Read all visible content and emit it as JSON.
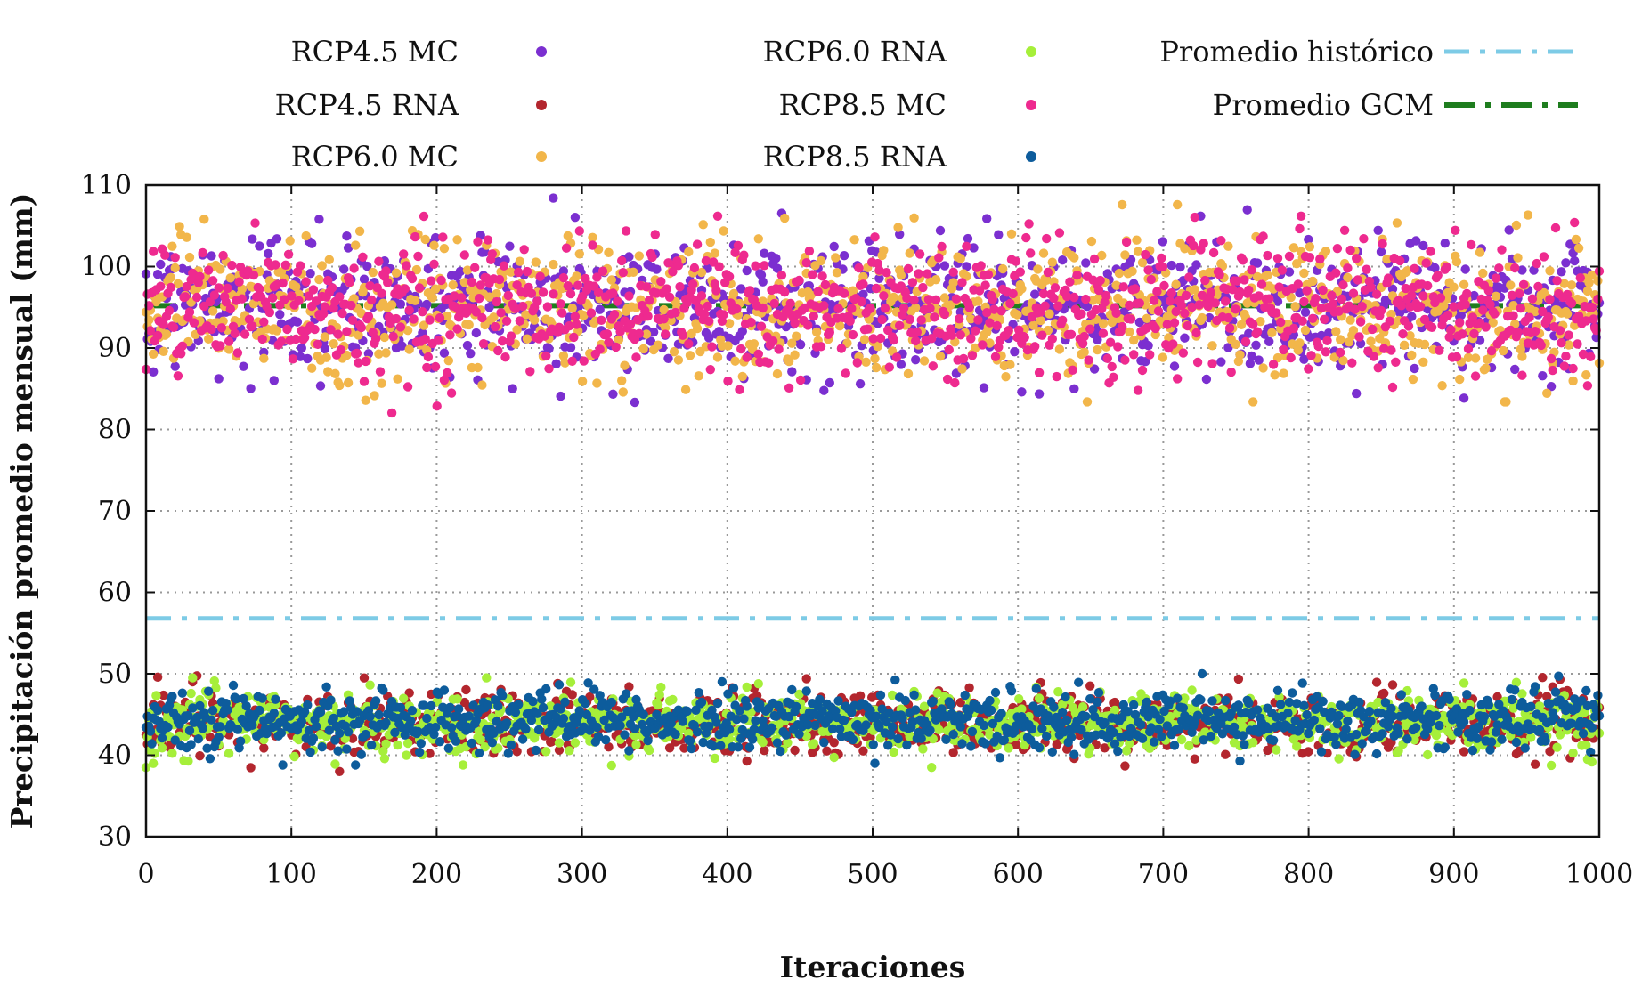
{
  "chart_data": {
    "type": "scatter",
    "title": "",
    "xlabel": "Iteraciones",
    "ylabel": "Precipitación promedio mensual (mm)",
    "xlim": [
      0,
      1000
    ],
    "ylim": [
      30,
      110
    ],
    "xticks": [
      "0",
      "100",
      "200",
      "300",
      "400",
      "500",
      "600",
      "700",
      "800",
      "900",
      "1000"
    ],
    "yticks": [
      "30",
      "40",
      "50",
      "60",
      "70",
      "80",
      "90",
      "100",
      "110"
    ],
    "grid": true,
    "legend_position": "top",
    "n_points_per_series": 1000,
    "series": [
      {
        "name": "RCP4.5 MC",
        "kind": "points",
        "color": "#7b2fd0",
        "group": "MC",
        "mean": 95.2,
        "spread": 4.2,
        "min": 79.6,
        "max": 108.4
      },
      {
        "name": "RCP4.5 RNA",
        "kind": "points",
        "color": "#b3262e",
        "group": "RNA",
        "mean": 44.0,
        "spread": 1.9,
        "min": 38.0,
        "max": 51.0
      },
      {
        "name": "RCP6.0 MC",
        "kind": "points",
        "color": "#f2b64a",
        "group": "MC",
        "mean": 95.0,
        "spread": 4.2,
        "min": 83.4,
        "max": 107.6
      },
      {
        "name": "RCP6.0 RNA",
        "kind": "points",
        "color": "#a6ef3a",
        "group": "RNA",
        "mean": 43.9,
        "spread": 1.9,
        "min": 38.5,
        "max": 49.5
      },
      {
        "name": "RCP8.5 MC",
        "kind": "points",
        "color": "#ee2a8f",
        "group": "MC",
        "mean": 95.0,
        "spread": 4.0,
        "min": 80.5,
        "max": 106.2
      },
      {
        "name": "RCP8.5 RNA",
        "kind": "points",
        "color": "#0d5c9c",
        "group": "RNA",
        "mean": 44.3,
        "spread": 1.8,
        "min": 38.8,
        "max": 50.0
      },
      {
        "name": "Promedio histórico",
        "kind": "line",
        "color": "#7dcbe6",
        "y": 56.8,
        "dash": "dash-dot"
      },
      {
        "name": "Promedio GCM",
        "kind": "line",
        "color": "#1e7d1e",
        "y": 95.2,
        "dash": "dash-dot"
      }
    ]
  }
}
